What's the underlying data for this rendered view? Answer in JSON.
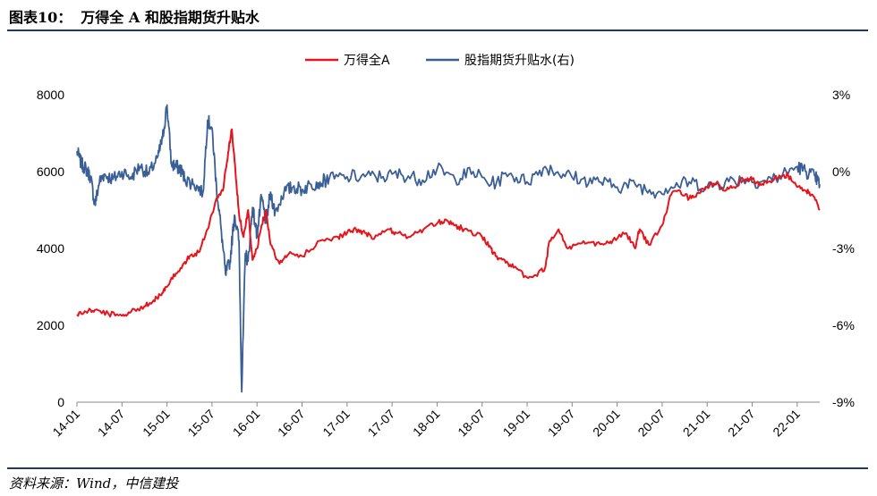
{
  "figure": {
    "title_num": "图表10：",
    "title_text": "万得全 A 和股指期货升贴水",
    "source": "资料来源：Wind，中信建投",
    "colors": {
      "accent": "#1f3864",
      "red": "#e8141b",
      "blue": "#3a5f96"
    }
  },
  "chart_data": {
    "type": "line",
    "title": "",
    "xlabel": "",
    "ylabel_left": "",
    "ylabel_right": "",
    "ylim": [
      0,
      8000
    ],
    "y2lim": [
      -9,
      3
    ],
    "yticks": [
      0,
      2000,
      4000,
      6000,
      8000
    ],
    "y2ticks": [
      "-9%",
      "-6%",
      "-3%",
      "0%",
      "3%"
    ],
    "y2tick_values": [
      -9,
      -6,
      -3,
      0,
      3
    ],
    "xlim": [
      0,
      8.25
    ],
    "xticks": [
      "14-01",
      "14-07",
      "15-01",
      "15-07",
      "16-01",
      "16-07",
      "17-01",
      "17-07",
      "18-01",
      "18-07",
      "19-01",
      "19-07",
      "20-01",
      "20-07",
      "21-01",
      "21-07",
      "22-01"
    ],
    "legend": [
      "万得全A",
      "股指期货升贴水(右)"
    ],
    "legend_position": "top-center",
    "series": [
      {
        "name": "万得全A",
        "axis": "left",
        "color": "#e8141b",
        "x": [
          0,
          0.1,
          0.2,
          0.35,
          0.5,
          0.6,
          0.75,
          0.85,
          0.95,
          1.0,
          1.1,
          1.2,
          1.25,
          1.35,
          1.45,
          1.55,
          1.62,
          1.68,
          1.72,
          1.76,
          1.8,
          1.85,
          1.9,
          1.95,
          2.0,
          2.05,
          2.1,
          2.15,
          2.25,
          2.35,
          2.5,
          2.7,
          2.9,
          3.0,
          3.1,
          3.2,
          3.3,
          3.45,
          3.55,
          3.7,
          3.85,
          4.0,
          4.1,
          4.2,
          4.3,
          4.5,
          4.6,
          4.65,
          4.75,
          4.85,
          5.0,
          5.1,
          5.2,
          5.25,
          5.35,
          5.45,
          5.55,
          5.7,
          5.85,
          5.95,
          6.1,
          6.2,
          6.25,
          6.35,
          6.5,
          6.6,
          6.7,
          6.8,
          6.9,
          7.0,
          7.1,
          7.2,
          7.3,
          7.4,
          7.5,
          7.6,
          7.7,
          7.8,
          7.9,
          8.0,
          8.1,
          8.17,
          8.25
        ],
        "values": [
          2280,
          2350,
          2400,
          2300,
          2250,
          2350,
          2500,
          2650,
          2850,
          3000,
          3350,
          3650,
          3800,
          3900,
          4500,
          5300,
          5500,
          6500,
          7100,
          6000,
          4900,
          4300,
          5000,
          3700,
          4000,
          4600,
          5000,
          4100,
          3600,
          3850,
          3800,
          4200,
          4300,
          4400,
          4500,
          4400,
          4250,
          4500,
          4400,
          4300,
          4500,
          4650,
          4750,
          4600,
          4500,
          4300,
          4000,
          3800,
          3700,
          3500,
          3250,
          3300,
          3500,
          4200,
          4500,
          4000,
          4100,
          4150,
          4100,
          4200,
          4400,
          4000,
          4500,
          4100,
          4600,
          5400,
          5500,
          5300,
          5450,
          5600,
          5700,
          5500,
          5600,
          5800,
          5800,
          5650,
          5750,
          5900,
          5900,
          5600,
          5500,
          5400,
          5000
        ]
      },
      {
        "name": "股指期货升贴水(右)",
        "axis": "right",
        "color": "#3a5f96",
        "x": [
          0,
          0.05,
          0.1,
          0.15,
          0.2,
          0.25,
          0.3,
          0.4,
          0.5,
          0.6,
          0.7,
          0.8,
          0.9,
          0.95,
          1.0,
          1.05,
          1.1,
          1.15,
          1.2,
          1.3,
          1.4,
          1.45,
          1.5,
          1.55,
          1.6,
          1.65,
          1.7,
          1.75,
          1.8,
          1.83,
          1.87,
          1.9,
          1.95,
          2.0,
          2.05,
          2.1,
          2.15,
          2.2,
          2.3,
          2.4,
          2.5,
          2.6,
          2.7,
          2.8,
          3.0,
          3.2,
          3.4,
          3.6,
          3.8,
          4.0,
          4.2,
          4.4,
          4.6,
          4.8,
          5.0,
          5.2,
          5.4,
          5.6,
          5.8,
          6.0,
          6.2,
          6.4,
          6.6,
          6.8,
          7.0,
          7.2,
          7.4,
          7.6,
          7.8,
          8.0,
          8.1,
          8.2,
          8.25
        ],
        "values": [
          0.8,
          0.3,
          0.1,
          -0.2,
          -1.3,
          -0.4,
          -0.1,
          -0.3,
          0.0,
          -0.2,
          0.2,
          -0.1,
          0.6,
          1.3,
          2.6,
          0.3,
          0.2,
          0.1,
          -0.3,
          -0.5,
          -0.8,
          2.0,
          1.7,
          -0.6,
          -2.2,
          -4.0,
          -3.5,
          -1.7,
          -2.7,
          -8.6,
          -3.2,
          -3.5,
          -1.4,
          -2.5,
          -1.0,
          -2.0,
          -0.8,
          -1.6,
          -0.8,
          -0.6,
          -0.7,
          -0.5,
          -0.4,
          -0.3,
          -0.2,
          -0.2,
          -0.2,
          -0.1,
          -0.3,
          0.1,
          -0.3,
          0.0,
          -0.5,
          -0.1,
          -0.4,
          0.2,
          -0.1,
          -0.3,
          -0.4,
          -0.6,
          -0.5,
          -0.8,
          -0.6,
          -0.4,
          -0.6,
          -0.4,
          -0.3,
          -0.4,
          -0.2,
          0.2,
          0.0,
          -0.2,
          -0.5
        ]
      }
    ]
  }
}
